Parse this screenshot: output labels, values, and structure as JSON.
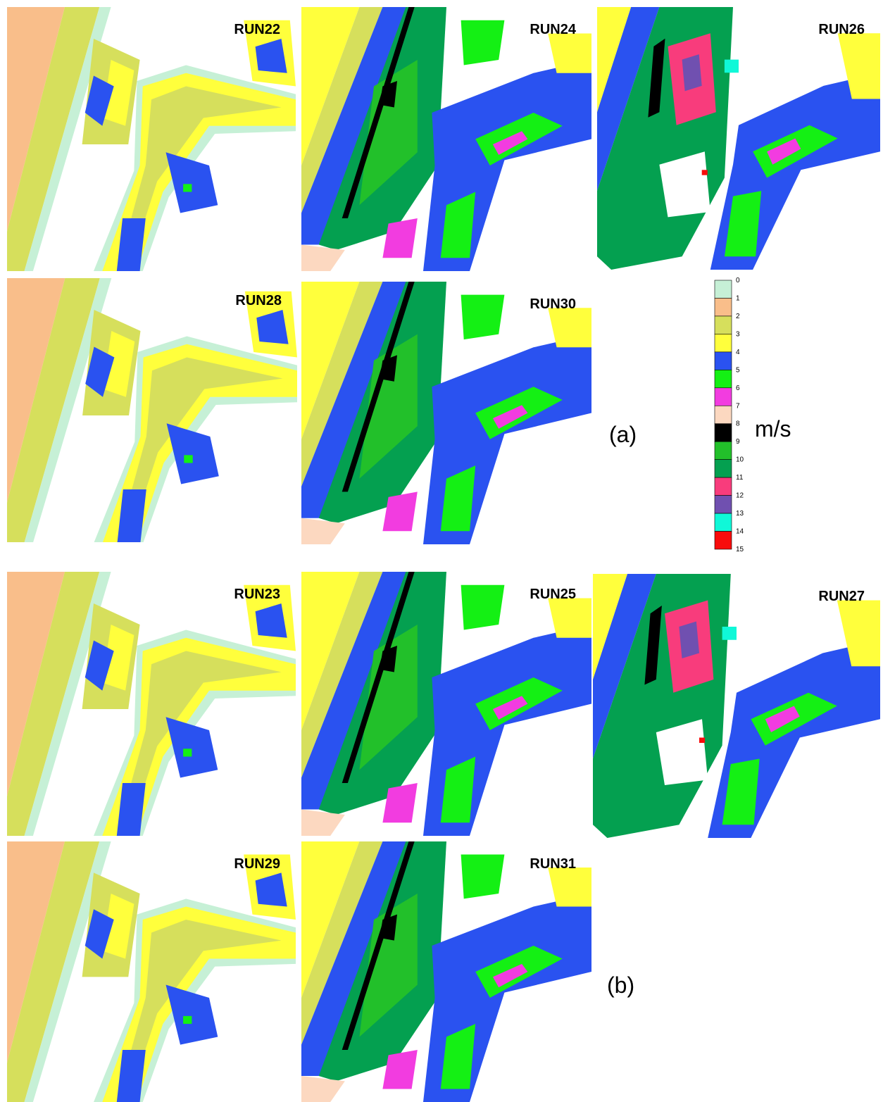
{
  "panels": [
    "RUN22",
    "RUN24",
    "RUN26",
    "RUN28",
    "RUN30",
    "RUN23",
    "RUN25",
    "RUN27",
    "RUN29",
    "RUN31"
  ],
  "group_labels": [
    "(a)",
    "(b)"
  ],
  "legend": {
    "unit": "m/s",
    "ticks": [
      0,
      1,
      2,
      3,
      4,
      5,
      6,
      7,
      8,
      9,
      10,
      11,
      12,
      13,
      14,
      15
    ],
    "colors": [
      "#c6f0d6",
      "#f9be8a",
      "#d6df5c",
      "#ffff3c",
      "#2a52f0",
      "#14f014",
      "#f23ce0",
      "#fcd8c0",
      "#000000",
      "#22c02a",
      "#04a050",
      "#f83c7c",
      "#7050b0",
      "#10f8d8",
      "#f80c0c"
    ]
  }
}
